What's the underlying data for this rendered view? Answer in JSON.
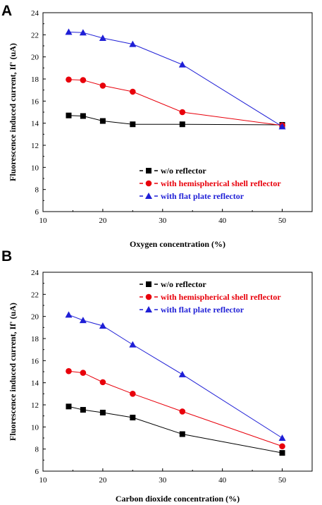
{
  "chart_data": [
    {
      "type": "line",
      "panel_label": "A",
      "xlabel": "Oxygen concentration (%)",
      "ylabel": "Fluorescence induced current, If' (uA)",
      "xlim": [
        10,
        55
      ],
      "ylim": [
        6,
        24
      ],
      "xticks": [
        10,
        20,
        30,
        40,
        50
      ],
      "yticks": [
        6,
        8,
        10,
        12,
        14,
        16,
        18,
        20,
        22,
        24
      ],
      "legend_position": "lower-center",
      "x": [
        14.3,
        16.7,
        20,
        25,
        33.3,
        50
      ],
      "series": [
        {
          "name": "w/o reflector",
          "marker": "square",
          "color": "#000000",
          "values": [
            14.7,
            14.65,
            14.2,
            13.9,
            13.9,
            13.85
          ]
        },
        {
          "name": "with hemispherical shell reflector",
          "marker": "circle",
          "color": "#e8000b",
          "values": [
            17.95,
            17.9,
            17.4,
            16.85,
            15.0,
            13.8
          ]
        },
        {
          "name": "with flat plate reflector",
          "marker": "triangle",
          "color": "#1f1fd6",
          "values": [
            22.25,
            22.2,
            21.7,
            21.15,
            19.3,
            13.7
          ]
        }
      ]
    },
    {
      "type": "line",
      "panel_label": "B",
      "xlabel": "Carbon dioxide concentration (%)",
      "ylabel": "Fluorescence induced current, If' (uA)",
      "xlim": [
        10,
        55
      ],
      "ylim": [
        6,
        24
      ],
      "xticks": [
        10,
        20,
        30,
        40,
        50
      ],
      "yticks": [
        6,
        8,
        10,
        12,
        14,
        16,
        18,
        20,
        22,
        24
      ],
      "legend_position": "top-center",
      "x": [
        14.3,
        16.7,
        20,
        25,
        33.3,
        50
      ],
      "series": [
        {
          "name": "w/o reflector",
          "marker": "square",
          "color": "#000000",
          "values": [
            11.85,
            11.55,
            11.3,
            10.85,
            9.35,
            7.65
          ]
        },
        {
          "name": "with hemispherical shell reflector",
          "marker": "circle",
          "color": "#e8000b",
          "values": [
            15.05,
            14.9,
            14.05,
            13.0,
            11.4,
            8.25
          ]
        },
        {
          "name": "with flat plate reflector",
          "marker": "triangle",
          "color": "#1f1fd6",
          "values": [
            20.15,
            19.65,
            19.15,
            17.45,
            14.75,
            9.0
          ]
        }
      ]
    }
  ]
}
